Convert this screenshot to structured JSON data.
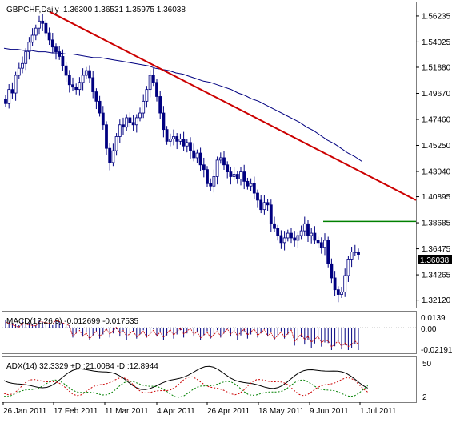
{
  "header": {
    "symbol_label": "GBPCHF,Daily",
    "ohlc": "1.36300 1.36531 1.35975 1.36038"
  },
  "price_panel": {
    "price_ticks": [
      "1.56235",
      "1.54025",
      "1.51880",
      "1.49670",
      "1.47460",
      "1.45250",
      "1.43040",
      "1.40895",
      "1.38685",
      "1.36475",
      "1.34265",
      "1.32120"
    ],
    "current_price": "1.36038",
    "ylim": [
      1.3155,
      1.5725
    ]
  },
  "macd_panel": {
    "label": "MACD(12,26,9) -0.012699 -0.017535",
    "ticks": [
      "0.0139",
      "0.00",
      "-0.02191"
    ]
  },
  "adx_panel": {
    "label": "ADX(14) 32.3329 +DI:21.0084 -DI:12.8944",
    "ticks": [
      "50",
      "2"
    ]
  },
  "x_axis": {
    "labels": [
      "26 Jan 2011",
      "17 Feb 2011",
      "11 Mar 2011",
      "4 Apr 2011",
      "26 Apr 2011",
      "18 May 2011",
      "9 Jun 2011",
      "1 Jul 2011"
    ]
  },
  "colors": {
    "background": "#ffffff",
    "candle": "#000080",
    "moving_average": "#000080",
    "trendline": "#cc0000",
    "resistance": "#008000",
    "macd_histogram": "#000080",
    "macd_signal": "#cc0000",
    "adx_line": "#000000",
    "plus_di": "#008000",
    "minus_di": "#cc0000",
    "current_price_bg": "#000000"
  },
  "chart_data": {
    "type": "candlestick",
    "series": [
      {
        "name": "GBPCHF",
        "closes": [
          1.488,
          1.5,
          1.497,
          1.512,
          1.518,
          1.522,
          1.532,
          1.54,
          1.546,
          1.552,
          1.558,
          1.556,
          1.548,
          1.542,
          1.536,
          1.532,
          1.528,
          1.52,
          1.512,
          1.504,
          1.502,
          1.5,
          1.506,
          1.512,
          1.516,
          1.51,
          1.498,
          1.49,
          1.48,
          1.47,
          1.45,
          1.438,
          1.448,
          1.46,
          1.47,
          1.468,
          1.476,
          1.472,
          1.47,
          1.476,
          1.48,
          1.49,
          1.5,
          1.512,
          1.506,
          1.494,
          1.48,
          1.466,
          1.456,
          1.458,
          1.46,
          1.456,
          1.458,
          1.452,
          1.455,
          1.448,
          1.442,
          1.446,
          1.436,
          1.432,
          1.42,
          1.418,
          1.426,
          1.44,
          1.442,
          1.436,
          1.43,
          1.426,
          1.428,
          1.424,
          1.43,
          1.422,
          1.418,
          1.42,
          1.412,
          1.406,
          1.398,
          1.404,
          1.402,
          1.386,
          1.382,
          1.376,
          1.37,
          1.374,
          1.378,
          1.374,
          1.372,
          1.376,
          1.38,
          1.386,
          1.376,
          1.378,
          1.372,
          1.37,
          1.366,
          1.372,
          1.352,
          1.34,
          1.33,
          1.326,
          1.328,
          1.342,
          1.356,
          1.362,
          1.362,
          1.36
        ]
      }
    ],
    "moving_average": [
      1.535,
      1.534,
      1.534,
      1.533,
      1.533,
      1.532,
      1.532,
      1.531,
      1.531,
      1.53,
      1.53,
      1.529,
      1.528,
      1.527,
      1.527,
      1.526,
      1.525,
      1.524,
      1.523,
      1.522,
      1.521,
      1.52,
      1.518,
      1.517,
      1.516,
      1.514,
      1.513,
      1.511,
      1.509,
      1.507,
      1.506,
      1.504,
      1.502,
      1.5,
      1.497,
      1.495,
      1.492,
      1.49,
      1.487,
      1.484,
      1.481,
      1.478,
      1.475,
      1.472,
      1.468,
      1.465,
      1.461,
      1.457,
      1.454,
      1.45,
      1.446,
      1.443,
      1.439
    ],
    "trendline": {
      "start": [
        "26 Jan 2011",
        1.566
      ],
      "end": [
        "1 Jul 2011",
        1.406
      ]
    },
    "resistance": 1.388,
    "x_labels": [
      "26 Jan 2011",
      "17 Feb 2011",
      "11 Mar 2011",
      "4 Apr 2011",
      "26 Apr 2011",
      "18 May 2011",
      "9 Jun 2011",
      "1 Jul 2011"
    ]
  }
}
